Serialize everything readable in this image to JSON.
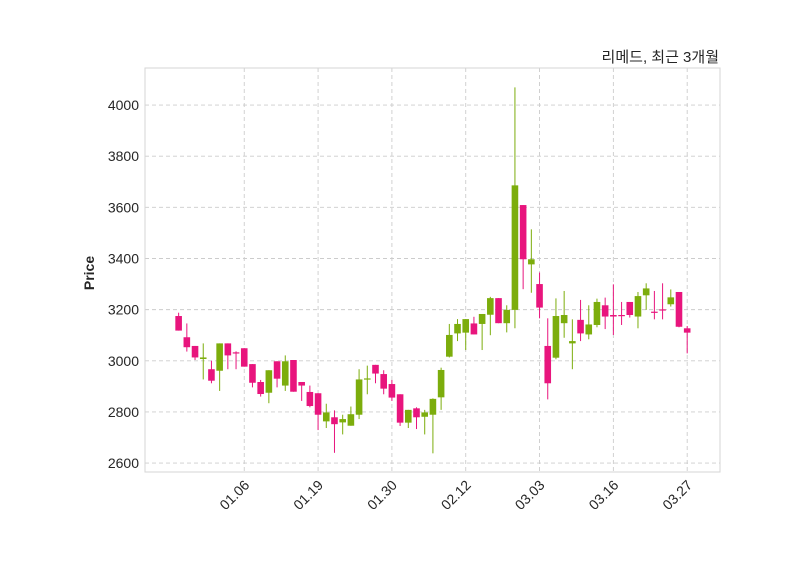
{
  "chart_data": {
    "type": "candlestick",
    "title": "리메드, 최근 3개월",
    "xlabel": "",
    "ylabel": "Price",
    "ylim": [
      2565,
      4145
    ],
    "xlim_index": [
      -4.1,
      66
    ],
    "grid": true,
    "yticks": [
      2600,
      2800,
      3000,
      3200,
      3400,
      3600,
      3800,
      4000
    ],
    "xticks": [
      {
        "index": 8,
        "label": "01.06"
      },
      {
        "index": 17,
        "label": "01.19"
      },
      {
        "index": 26,
        "label": "01.30"
      },
      {
        "index": 35,
        "label": "02.12"
      },
      {
        "index": 44,
        "label": "03.03"
      },
      {
        "index": 53,
        "label": "03.16"
      },
      {
        "index": 62,
        "label": "03.27"
      }
    ],
    "colors": {
      "up": "#7cad0c",
      "down": "#e8157d"
    },
    "ohlc": [
      [
        3175,
        3188,
        3118,
        3118
      ],
      [
        3092,
        3146,
        3036,
        3053
      ],
      [
        3058,
        3058,
        3003,
        3013
      ],
      [
        3007,
        3068,
        2927,
        3013
      ],
      [
        2967,
        3000,
        2912,
        2922
      ],
      [
        2961,
        3068,
        2882,
        3068
      ],
      [
        3068,
        3068,
        2967,
        3021
      ],
      [
        3033,
        3037,
        2967,
        3029
      ],
      [
        3049,
        3049,
        2977,
        2977
      ],
      [
        2987,
        2987,
        2896,
        2914
      ],
      [
        2917,
        2925,
        2860,
        2870
      ],
      [
        2875,
        2963,
        2834,
        2963
      ],
      [
        2998,
        2998,
        2896,
        2930
      ],
      [
        2903,
        3021,
        2882,
        2998
      ],
      [
        3003,
        3003,
        2879,
        2879
      ],
      [
        2917,
        2917,
        2843,
        2903
      ],
      [
        2878,
        2903,
        2818,
        2823
      ],
      [
        2873,
        2873,
        2729,
        2789
      ],
      [
        2763,
        2832,
        2737,
        2798
      ],
      [
        2779,
        2806,
        2640,
        2752
      ],
      [
        2759,
        2789,
        2712,
        2772
      ],
      [
        2746,
        2821,
        2746,
        2791
      ],
      [
        2789,
        2967,
        2772,
        2927
      ],
      [
        2927,
        2981,
        2869,
        2931
      ],
      [
        2984,
        2984,
        2912,
        2950
      ],
      [
        2948,
        2963,
        2869,
        2891
      ],
      [
        2909,
        2925,
        2843,
        2856
      ],
      [
        2869,
        2869,
        2745,
        2758
      ],
      [
        2758,
        2808,
        2737,
        2808
      ],
      [
        2814,
        2818,
        2733,
        2779
      ],
      [
        2781,
        2808,
        2712,
        2798
      ],
      [
        2789,
        2853,
        2638,
        2851
      ],
      [
        2857,
        2973,
        2808,
        2964
      ],
      [
        3016,
        3144,
        3013,
        3101
      ],
      [
        3107,
        3163,
        3077,
        3144
      ],
      [
        3110,
        3163,
        3042,
        3163
      ],
      [
        3146,
        3172,
        3103,
        3103
      ],
      [
        3144,
        3183,
        3042,
        3183
      ],
      [
        3180,
        3250,
        3100,
        3245
      ],
      [
        3245,
        3245,
        3147,
        3147
      ],
      [
        3147,
        3217,
        3111,
        3199
      ],
      [
        3199,
        4069,
        3127,
        3686
      ],
      [
        3609,
        3609,
        3280,
        3397
      ],
      [
        3377,
        3514,
        3266,
        3397
      ],
      [
        3300,
        3345,
        3166,
        3208
      ],
      [
        3058,
        3166,
        2849,
        2912
      ],
      [
        3012,
        3244,
        3006,
        3175
      ],
      [
        3147,
        3273,
        3090,
        3179
      ],
      [
        3068,
        3162,
        2967,
        3077
      ],
      [
        3160,
        3238,
        3077,
        3107
      ],
      [
        3103,
        3217,
        3084,
        3142
      ],
      [
        3140,
        3243,
        3131,
        3230
      ],
      [
        3217,
        3247,
        3124,
        3173
      ],
      [
        3179,
        3299,
        3101,
        3173
      ],
      [
        3179,
        3230,
        3140,
        3175
      ],
      [
        3230,
        3230,
        3169,
        3179
      ],
      [
        3173,
        3269,
        3127,
        3253
      ],
      [
        3256,
        3303,
        3199,
        3283
      ],
      [
        3192,
        3273,
        3162,
        3190
      ],
      [
        3201,
        3303,
        3162,
        3199
      ],
      [
        3221,
        3279,
        3212,
        3248
      ],
      [
        3269,
        3269,
        3131,
        3133
      ],
      [
        3127,
        3136,
        3029,
        3110
      ]
    ]
  }
}
